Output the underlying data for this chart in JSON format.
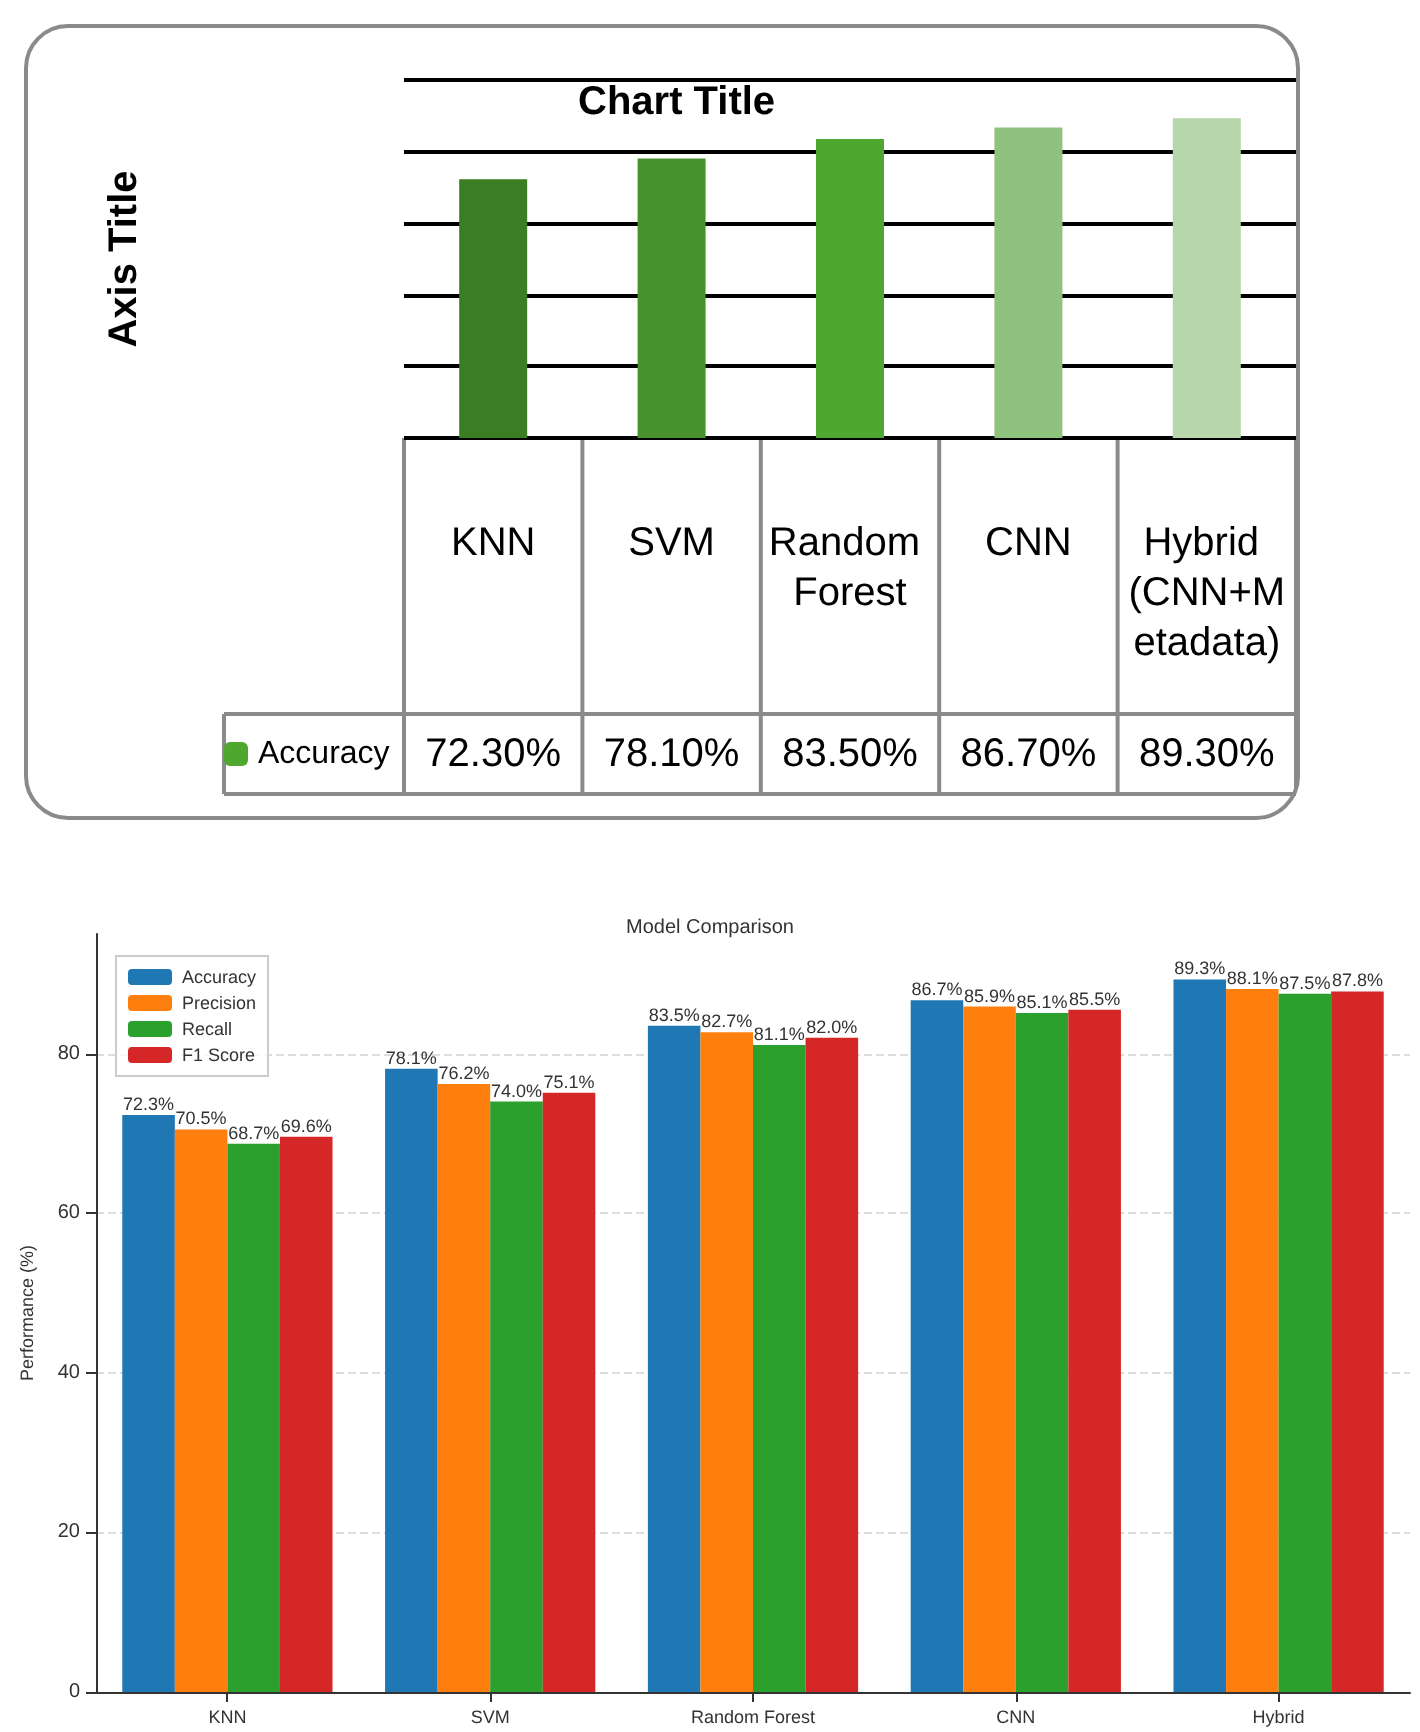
{
  "chart_data": [
    {
      "type": "bar",
      "title": "Chart Title",
      "ylabel": "Axis Title",
      "categories": [
        "KNN",
        "SVM",
        "Random Forest",
        "CNN",
        "Hybrid (CNN+Metadata)"
      ],
      "series": [
        {
          "name": "Accuracy",
          "color": "#4ea72e",
          "colors": [
            "#3b7d23",
            "#47922d",
            "#4ea72e",
            "#8fc27f",
            "#b7d6ab"
          ],
          "values": [
            72.3,
            78.1,
            83.5,
            86.7,
            89.3
          ],
          "value_labels": [
            "72.30%",
            "78.10%",
            "83.50%",
            "86.70%",
            "89.30%"
          ]
        }
      ],
      "ylim": [
        0,
        100
      ],
      "yticks": [
        {
          "value": 0,
          "label": null
        },
        {
          "value": 20,
          "label": null
        },
        {
          "value": 40,
          "label": null
        },
        {
          "value": 60,
          "label": null
        },
        {
          "value": 80,
          "label": null
        },
        {
          "value": 100,
          "label": null
        }
      ],
      "grid": "y",
      "legend": "bottom left",
      "tick_labels": "x"
    },
    {
      "type": "bar",
      "title": "Model Comparison",
      "ylabel": "Performance (%)",
      "categories": [
        "KNN",
        "SVM",
        "Random Forest",
        "CNN",
        "Hybrid"
      ],
      "series": [
        {
          "name": "Accuracy",
          "color": "#1f77b4",
          "values": [
            72.3,
            78.1,
            83.5,
            86.7,
            89.3
          ],
          "value_labels": [
            "72.3%",
            "78.1%",
            "83.5%",
            "86.7%",
            "89.3%"
          ]
        },
        {
          "name": "Precision",
          "color": "#ff7f0e",
          "values": [
            70.5,
            76.2,
            82.7,
            85.9,
            88.1
          ],
          "value_labels": [
            "70.5%",
            "76.2%",
            "82.7%",
            "85.9%",
            "88.1%"
          ]
        },
        {
          "name": "Recall",
          "color": "#2ca02c",
          "values": [
            68.7,
            74.0,
            81.1,
            85.1,
            87.5
          ],
          "value_labels": [
            "68.7%",
            "74.0%",
            "81.1%",
            "85.1%",
            "87.5%"
          ]
        },
        {
          "name": "F1 Score",
          "color": "#d62728",
          "values": [
            69.6,
            75.1,
            82.0,
            85.5,
            87.8
          ],
          "value_labels": [
            "69.6%",
            "75.1%",
            "82.0%",
            "85.5%",
            "87.8%"
          ]
        }
      ],
      "ylim": [
        0,
        95
      ],
      "yticks": [
        0,
        20,
        40,
        60,
        80
      ],
      "grid": "y",
      "legend": "top left"
    }
  ]
}
